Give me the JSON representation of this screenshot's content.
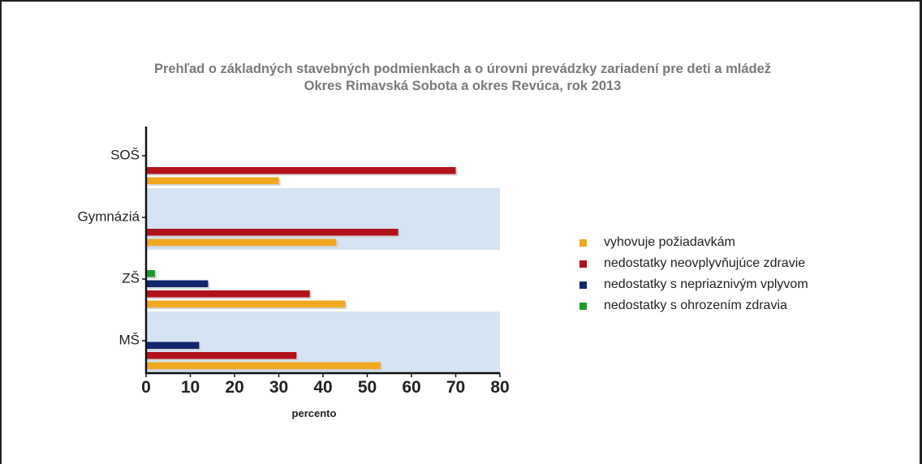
{
  "chart_data": {
    "type": "bar",
    "orientation": "horizontal",
    "title": "Prehľad o základných stavebných podmienkach a o úrovni prevádzky zariadení pre deti a mládež",
    "subtitle": "Okres Rimavská Sobota a okres Revúca, rok 2013",
    "xlabel": "percento",
    "ylabel": "",
    "xlim": [
      0,
      80
    ],
    "xticks": [
      0,
      10,
      20,
      30,
      40,
      50,
      60,
      70,
      80
    ],
    "categories": [
      "SOŠ",
      "Gymnáziá",
      "ZŠ",
      "MŠ"
    ],
    "series": [
      {
        "name": "nedostatky s ohrozením zdravia",
        "color": "#1e9a28",
        "values": [
          0,
          0,
          2,
          0
        ]
      },
      {
        "name": "nedostatky s nepriaznivým vplyvom",
        "color": "#12266e",
        "values": [
          0,
          0,
          14,
          12
        ]
      },
      {
        "name": "nedostatky neovplyvňujúce zdravie",
        "color": "#b2121c",
        "values": [
          70,
          57,
          37,
          34
        ]
      },
      {
        "name": "vyhovuje požiadavkám",
        "color": "#f0a81e",
        "values": [
          30,
          43,
          45,
          53
        ]
      }
    ],
    "legend_order": [
      "vyhovuje požiadavkám",
      "nedostatky neovplyvňujúce zdravie",
      "nedostatky s nepriaznivým vplyvom",
      "nedostatky s ohrozením zdravia"
    ],
    "legend_position": "right",
    "banded_background": true,
    "band_color": "#d5e3f2",
    "grid": false
  }
}
